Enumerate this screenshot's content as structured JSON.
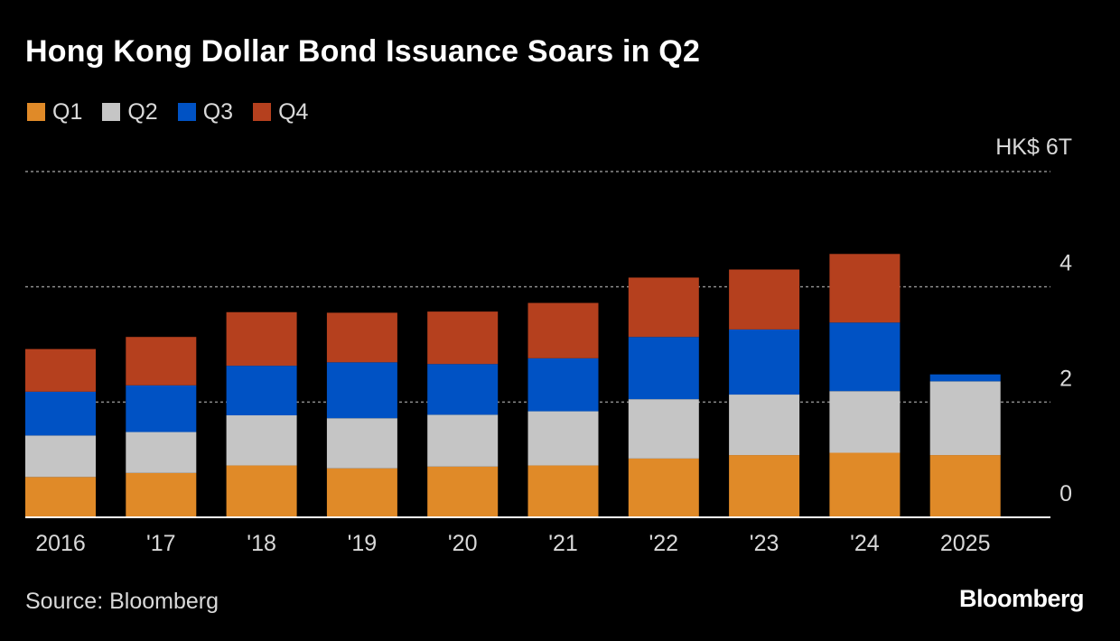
{
  "title": "Hong Kong Dollar Bond Issuance Soars in Q2",
  "source": "Source: Bloomberg",
  "logo": "Bloomberg",
  "colors": {
    "background": "#000000",
    "Q1": "#e08a28",
    "Q2": "#c5c5c5",
    "Q3": "#0052c4",
    "Q4": "#b5401e",
    "grid": "#8c8c8c",
    "text": "#d9d9d9"
  },
  "legend": [
    {
      "label": "Q1",
      "color": "#e08a28"
    },
    {
      "label": "Q2",
      "color": "#c5c5c5"
    },
    {
      "label": "Q3",
      "color": "#0052c4"
    },
    {
      "label": "Q4",
      "color": "#b5401e"
    }
  ],
  "chart_data": {
    "type": "bar",
    "stacked": true,
    "categories": [
      "2016",
      "'17",
      "'18",
      "'19",
      "'20",
      "'21",
      "'22",
      "'23",
      "'24",
      "2025"
    ],
    "series": [
      {
        "name": "Q1",
        "values": [
          0.7,
          0.77,
          0.9,
          0.85,
          0.88,
          0.9,
          1.02,
          1.08,
          1.12,
          1.08
        ]
      },
      {
        "name": "Q2",
        "values": [
          0.72,
          0.71,
          0.87,
          0.87,
          0.9,
          0.94,
          1.03,
          1.05,
          1.07,
          1.28
        ]
      },
      {
        "name": "Q3",
        "values": [
          0.76,
          0.81,
          0.86,
          0.97,
          0.88,
          0.92,
          1.08,
          1.13,
          1.19,
          0.12
        ]
      },
      {
        "name": "Q4",
        "values": [
          0.74,
          0.84,
          0.93,
          0.86,
          0.91,
          0.96,
          1.03,
          1.04,
          1.19,
          0
        ]
      }
    ],
    "ylim": [
      0,
      6
    ],
    "yticks": [
      {
        "value": 0,
        "label": "0"
      },
      {
        "value": 2,
        "label": "2"
      },
      {
        "value": 4,
        "label": "4"
      },
      {
        "value": 6,
        "label": "HK$ 6T"
      }
    ],
    "grid": true,
    "legend_position": "top-left",
    "xlabel": "",
    "ylabel": ""
  }
}
